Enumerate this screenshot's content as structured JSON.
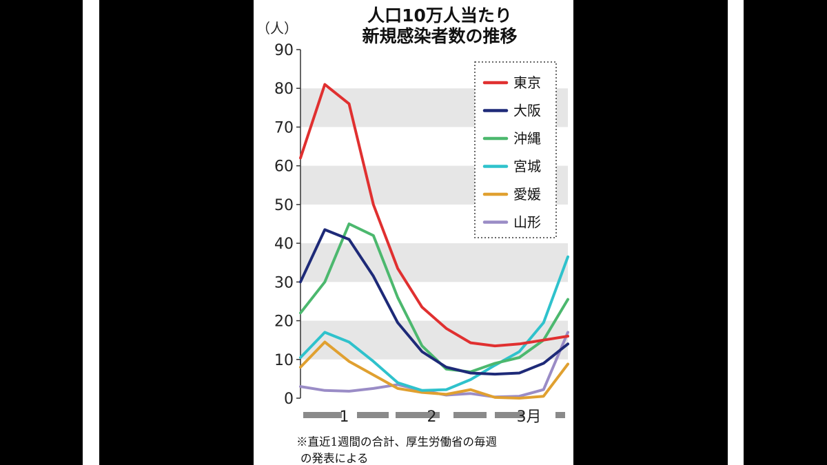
{
  "chart_data": {
    "type": "line",
    "title": [
      "人口10万人当たり",
      "新規感染者数の推移"
    ],
    "ylabel": "（人）",
    "ylim": [
      0,
      90
    ],
    "yticks": [
      0,
      10,
      20,
      30,
      40,
      50,
      60,
      70,
      80,
      90
    ],
    "x": [
      1,
      2,
      3,
      4,
      5,
      6,
      7,
      8,
      9,
      10,
      11,
      12
    ],
    "xlabels": [
      {
        "text": "1",
        "at": 2.8
      },
      {
        "text": "2",
        "at": 6.4
      },
      {
        "text": "3月",
        "at": 10.4
      }
    ],
    "grid": "alternating horizontal bands",
    "legend_position": "top-right",
    "series": [
      {
        "name": "東京",
        "color": "#e03030",
        "values": [
          62,
          81,
          76,
          50,
          33.5,
          23.5,
          18,
          14.3,
          13.5,
          14,
          15,
          16
        ]
      },
      {
        "name": "大阪",
        "color": "#1e2a78",
        "values": [
          30,
          43.5,
          41,
          31.5,
          19.5,
          12,
          8,
          6.5,
          6.2,
          6.5,
          9,
          14
        ]
      },
      {
        "name": "沖縄",
        "color": "#4cb86e",
        "values": [
          22,
          30,
          45,
          42,
          26,
          13.5,
          7.5,
          6.8,
          9,
          10.5,
          15,
          25.5
        ]
      },
      {
        "name": "宮城",
        "color": "#2fc2cc",
        "values": [
          10.5,
          17,
          14.5,
          9.5,
          4,
          2,
          2.2,
          4.8,
          8.5,
          12,
          19.5,
          36.5
        ]
      },
      {
        "name": "愛媛",
        "color": "#e0a030",
        "values": [
          8,
          14.5,
          9.5,
          6,
          2.5,
          1.5,
          1,
          2.2,
          0.2,
          0,
          0.5,
          8.8
        ]
      },
      {
        "name": "山形",
        "color": "#9a8cc6",
        "values": [
          3,
          2,
          1.8,
          2.5,
          3.5,
          2,
          0.8,
          1.2,
          0.3,
          0.5,
          2.2,
          17
        ]
      }
    ]
  },
  "note": [
    "※直近1週間の合計、厚生労働省の毎週",
    "の発表による"
  ]
}
